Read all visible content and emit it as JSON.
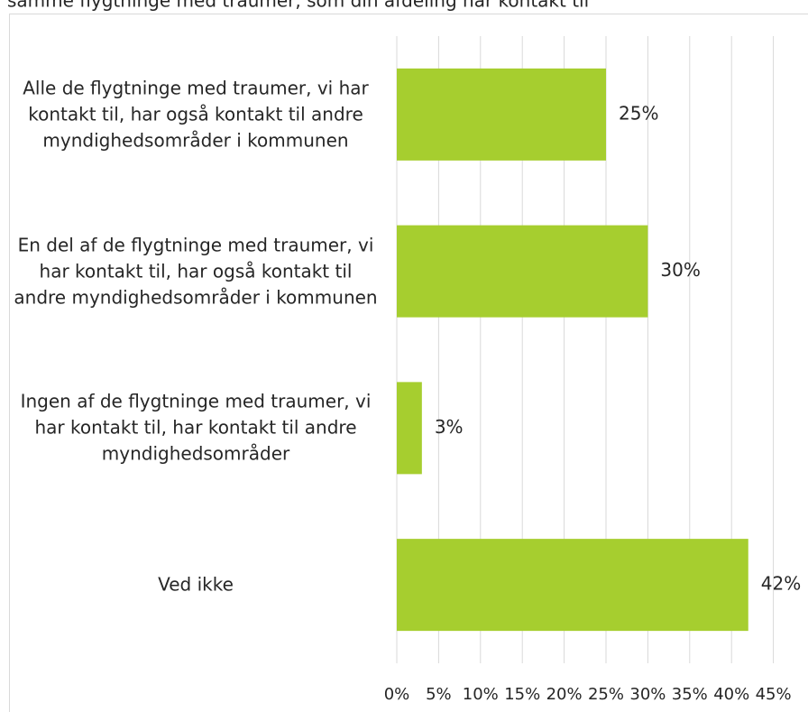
{
  "chart_data": {
    "type": "bar",
    "orientation": "horizontal",
    "title": "samme flygtninge med traumer, som din afdeling har kontakt til",
    "categories": [
      "Alle de flygtninge med traumer, vi har kontakt til, har også kontakt til andre myndighedsområder i kommunen",
      "En del af de flygtninge med traumer, vi har kontakt til, har også kontakt til andre myndighedsområder i kommunen",
      "Ingen af de flygtninge med traumer, vi har kontakt til, har kontakt til andre myndighedsområder",
      "Ved ikke"
    ],
    "values": [
      25,
      30,
      3,
      42
    ],
    "value_labels": [
      "25%",
      "30%",
      "3%",
      "42%"
    ],
    "color": "#a6ce2f",
    "xlim": [
      0,
      45
    ],
    "xticks": [
      {
        "value": 0,
        "label": "0%"
      },
      {
        "value": 5,
        "label": "5%"
      },
      {
        "value": 10,
        "label": "10%"
      },
      {
        "value": 15,
        "label": "15%"
      },
      {
        "value": 20,
        "label": "20%"
      },
      {
        "value": 25,
        "label": "25%"
      },
      {
        "value": 30,
        "label": "30%"
      },
      {
        "value": 35,
        "label": "35%"
      },
      {
        "value": 40,
        "label": "40%"
      },
      {
        "value": 45,
        "label": "45%"
      }
    ],
    "grid": true
  }
}
